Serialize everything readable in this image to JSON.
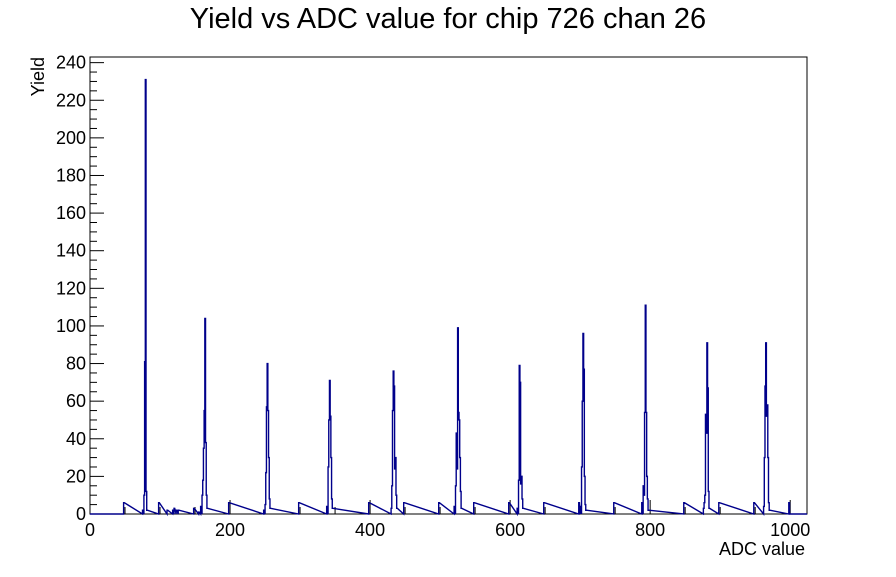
{
  "chart_data": {
    "type": "histogram",
    "title": "Yield vs ADC value for chip 726 chan 26",
    "xlabel": "ADC value",
    "ylabel": "Yield",
    "xlim": [
      0,
      1024
    ],
    "ylim": [
      0,
      243
    ],
    "x_ticks": [
      0,
      200,
      400,
      600,
      800,
      1000
    ],
    "y_ticks": [
      0,
      20,
      40,
      60,
      80,
      100,
      120,
      140,
      160,
      180,
      200,
      220,
      240
    ],
    "grid": false,
    "legend": "none",
    "line_color": "#00008b",
    "bins": [
      {
        "x": 48,
        "y": 6
      },
      {
        "x": 75,
        "y": 2
      },
      {
        "x": 77,
        "y": 10
      },
      {
        "x": 78,
        "y": 81
      },
      {
        "x": 79,
        "y": 231
      },
      {
        "x": 80,
        "y": 12
      },
      {
        "x": 81,
        "y": 2
      },
      {
        "x": 98,
        "y": 6
      },
      {
        "x": 110,
        "y": 2
      },
      {
        "x": 118,
        "y": 2
      },
      {
        "x": 120,
        "y": 3
      },
      {
        "x": 123,
        "y": 2
      },
      {
        "x": 126,
        "y": 2
      },
      {
        "x": 148,
        "y": 3
      },
      {
        "x": 155,
        "y": 1
      },
      {
        "x": 158,
        "y": 4
      },
      {
        "x": 160,
        "y": 10
      },
      {
        "x": 161,
        "y": 18
      },
      {
        "x": 162,
        "y": 35
      },
      {
        "x": 163,
        "y": 55
      },
      {
        "x": 164,
        "y": 104
      },
      {
        "x": 165,
        "y": 38
      },
      {
        "x": 166,
        "y": 10
      },
      {
        "x": 167,
        "y": 3
      },
      {
        "x": 198,
        "y": 6
      },
      {
        "x": 248,
        "y": 2
      },
      {
        "x": 250,
        "y": 5
      },
      {
        "x": 251,
        "y": 22
      },
      {
        "x": 252,
        "y": 57
      },
      {
        "x": 253,
        "y": 80
      },
      {
        "x": 254,
        "y": 55
      },
      {
        "x": 255,
        "y": 30
      },
      {
        "x": 256,
        "y": 8
      },
      {
        "x": 257,
        "y": 3
      },
      {
        "x": 298,
        "y": 6
      },
      {
        "x": 338,
        "y": 4
      },
      {
        "x": 340,
        "y": 25
      },
      {
        "x": 341,
        "y": 50
      },
      {
        "x": 342,
        "y": 71
      },
      {
        "x": 343,
        "y": 52
      },
      {
        "x": 344,
        "y": 30
      },
      {
        "x": 345,
        "y": 8
      },
      {
        "x": 346,
        "y": 3
      },
      {
        "x": 398,
        "y": 6
      },
      {
        "x": 430,
        "y": 3
      },
      {
        "x": 431,
        "y": 15
      },
      {
        "x": 432,
        "y": 55
      },
      {
        "x": 433,
        "y": 76
      },
      {
        "x": 434,
        "y": 68
      },
      {
        "x": 435,
        "y": 24
      },
      {
        "x": 436,
        "y": 30
      },
      {
        "x": 437,
        "y": 10
      },
      {
        "x": 438,
        "y": 3
      },
      {
        "x": 448,
        "y": 6
      },
      {
        "x": 498,
        "y": 6
      },
      {
        "x": 520,
        "y": 4
      },
      {
        "x": 522,
        "y": 15
      },
      {
        "x": 523,
        "y": 43
      },
      {
        "x": 524,
        "y": 24
      },
      {
        "x": 525,
        "y": 99
      },
      {
        "x": 526,
        "y": 54
      },
      {
        "x": 527,
        "y": 50
      },
      {
        "x": 528,
        "y": 30
      },
      {
        "x": 529,
        "y": 12
      },
      {
        "x": 530,
        "y": 3
      },
      {
        "x": 548,
        "y": 6
      },
      {
        "x": 598,
        "y": 6
      },
      {
        "x": 610,
        "y": 3
      },
      {
        "x": 612,
        "y": 18
      },
      {
        "x": 613,
        "y": 79
      },
      {
        "x": 614,
        "y": 70
      },
      {
        "x": 615,
        "y": 16
      },
      {
        "x": 616,
        "y": 20
      },
      {
        "x": 617,
        "y": 8
      },
      {
        "x": 618,
        "y": 3
      },
      {
        "x": 648,
        "y": 6
      },
      {
        "x": 698,
        "y": 6
      },
      {
        "x": 700,
        "y": 4
      },
      {
        "x": 702,
        "y": 25
      },
      {
        "x": 703,
        "y": 60
      },
      {
        "x": 704,
        "y": 96
      },
      {
        "x": 705,
        "y": 77
      },
      {
        "x": 706,
        "y": 20
      },
      {
        "x": 707,
        "y": 5
      },
      {
        "x": 708,
        "y": 2
      },
      {
        "x": 748,
        "y": 6
      },
      {
        "x": 788,
        "y": 6
      },
      {
        "x": 790,
        "y": 15
      },
      {
        "x": 791,
        "y": 10
      },
      {
        "x": 792,
        "y": 54
      },
      {
        "x": 793,
        "y": 111
      },
      {
        "x": 794,
        "y": 54
      },
      {
        "x": 795,
        "y": 20
      },
      {
        "x": 796,
        "y": 8
      },
      {
        "x": 797,
        "y": 2
      },
      {
        "x": 848,
        "y": 6
      },
      {
        "x": 876,
        "y": 3
      },
      {
        "x": 877,
        "y": 6
      },
      {
        "x": 878,
        "y": 10
      },
      {
        "x": 879,
        "y": 53
      },
      {
        "x": 880,
        "y": 43
      },
      {
        "x": 881,
        "y": 91
      },
      {
        "x": 882,
        "y": 67
      },
      {
        "x": 883,
        "y": 12
      },
      {
        "x": 884,
        "y": 3
      },
      {
        "x": 898,
        "y": 6
      },
      {
        "x": 948,
        "y": 6
      },
      {
        "x": 962,
        "y": 4
      },
      {
        "x": 963,
        "y": 30
      },
      {
        "x": 964,
        "y": 68
      },
      {
        "x": 965,
        "y": 91
      },
      {
        "x": 966,
        "y": 52
      },
      {
        "x": 967,
        "y": 58
      },
      {
        "x": 968,
        "y": 30
      },
      {
        "x": 969,
        "y": 6
      },
      {
        "x": 970,
        "y": 2
      },
      {
        "x": 998,
        "y": 6
      }
    ]
  }
}
